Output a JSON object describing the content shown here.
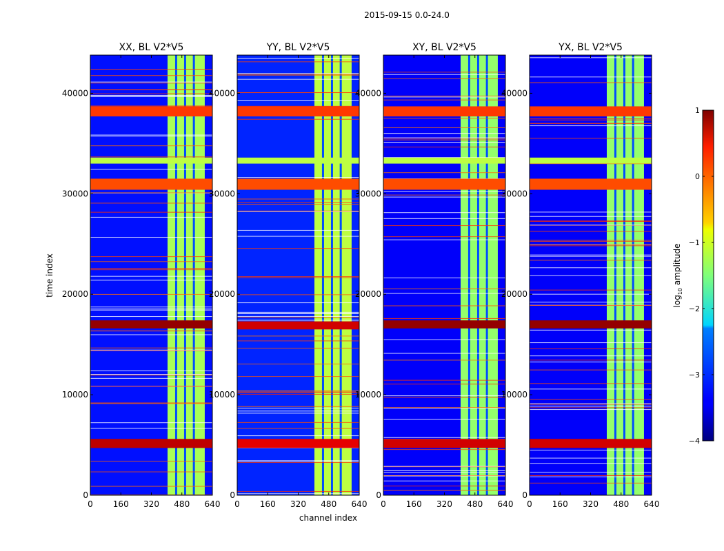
{
  "suptitle": "2015-09-15 0.0-24.0",
  "chart_data": {
    "type": "heatmap",
    "title": "2015-09-15 0.0-24.0",
    "xlabel": "channel index",
    "ylabel": "time index",
    "xlim": [
      0,
      640
    ],
    "ylim": [
      0,
      43800
    ],
    "xticks": [
      "0",
      "160",
      "320",
      "480",
      "640"
    ],
    "xtick_values": [
      0,
      160,
      320,
      480,
      640
    ],
    "yticks": [
      "0",
      "10000",
      "20000",
      "30000",
      "40000"
    ],
    "ytick_values": [
      0,
      10000,
      20000,
      30000,
      40000
    ],
    "colorbar": {
      "label": "log",
      "label_sub": "10",
      "label_rest": " amplitude",
      "range": [
        -4,
        1
      ],
      "ticks": [
        "1",
        "0",
        "−1",
        "−2",
        "−3",
        "−4"
      ],
      "tick_values": [
        1,
        0,
        -1,
        -2,
        -3,
        -4
      ],
      "colormap": "jet"
    },
    "panels": [
      {
        "title": "XX, BL V2*V5",
        "background_log_amplitude": -3.3,
        "bright_channel_band": [
          405,
          600
        ],
        "bright_band_log_amplitude": -1.3,
        "intense_time_rows": [
          {
            "range": [
              37700,
              38700
            ],
            "log_amplitude": 0.1
          },
          {
            "range": [
              33000,
              33600
            ],
            "log_amplitude": -1.2
          },
          {
            "range": [
              30400,
              31500
            ],
            "log_amplitude": 0.0
          },
          {
            "range": [
              16600,
              17400
            ],
            "log_amplitude": 0.9
          },
          {
            "range": [
              4700,
              5600
            ],
            "log_amplitude": 0.7
          }
        ]
      },
      {
        "title": "YY, BL V2*V5",
        "background_log_amplitude": -3.2,
        "bright_channel_band": [
          405,
          600
        ],
        "bright_band_log_amplitude": -1.2,
        "intense_time_rows": [
          {
            "range": [
              37700,
              38700
            ],
            "log_amplitude": 0.1
          },
          {
            "range": [
              33000,
              33600
            ],
            "log_amplitude": -1.2
          },
          {
            "range": [
              30400,
              31500
            ],
            "log_amplitude": 0.0
          },
          {
            "range": [
              16500,
              17300
            ],
            "log_amplitude": 0.6
          },
          {
            "range": [
              4700,
              5600
            ],
            "log_amplitude": 0.5
          }
        ]
      },
      {
        "title": "XY, BL V2*V5",
        "background_log_amplitude": -3.4,
        "bright_channel_band": [
          405,
          600
        ],
        "bright_band_log_amplitude": -1.4,
        "intense_time_rows": [
          {
            "range": [
              37700,
              38700
            ],
            "log_amplitude": 0.1
          },
          {
            "range": [
              33000,
              33600
            ],
            "log_amplitude": -1.2
          },
          {
            "range": [
              30400,
              31500
            ],
            "log_amplitude": 0.0
          },
          {
            "range": [
              16600,
              17400
            ],
            "log_amplitude": 0.9
          },
          {
            "range": [
              4700,
              5600
            ],
            "log_amplitude": 0.6
          }
        ]
      },
      {
        "title": "YX, BL V2*V5",
        "background_log_amplitude": -3.4,
        "bright_channel_band": [
          405,
          600
        ],
        "bright_band_log_amplitude": -1.4,
        "intense_time_rows": [
          {
            "range": [
              37700,
              38700
            ],
            "log_amplitude": 0.1
          },
          {
            "range": [
              33000,
              33600
            ],
            "log_amplitude": -1.2
          },
          {
            "range": [
              30400,
              31500
            ],
            "log_amplitude": 0.0
          },
          {
            "range": [
              16600,
              17400
            ],
            "log_amplitude": 0.9
          },
          {
            "range": [
              4700,
              5600
            ],
            "log_amplitude": 0.6
          }
        ]
      }
    ]
  }
}
